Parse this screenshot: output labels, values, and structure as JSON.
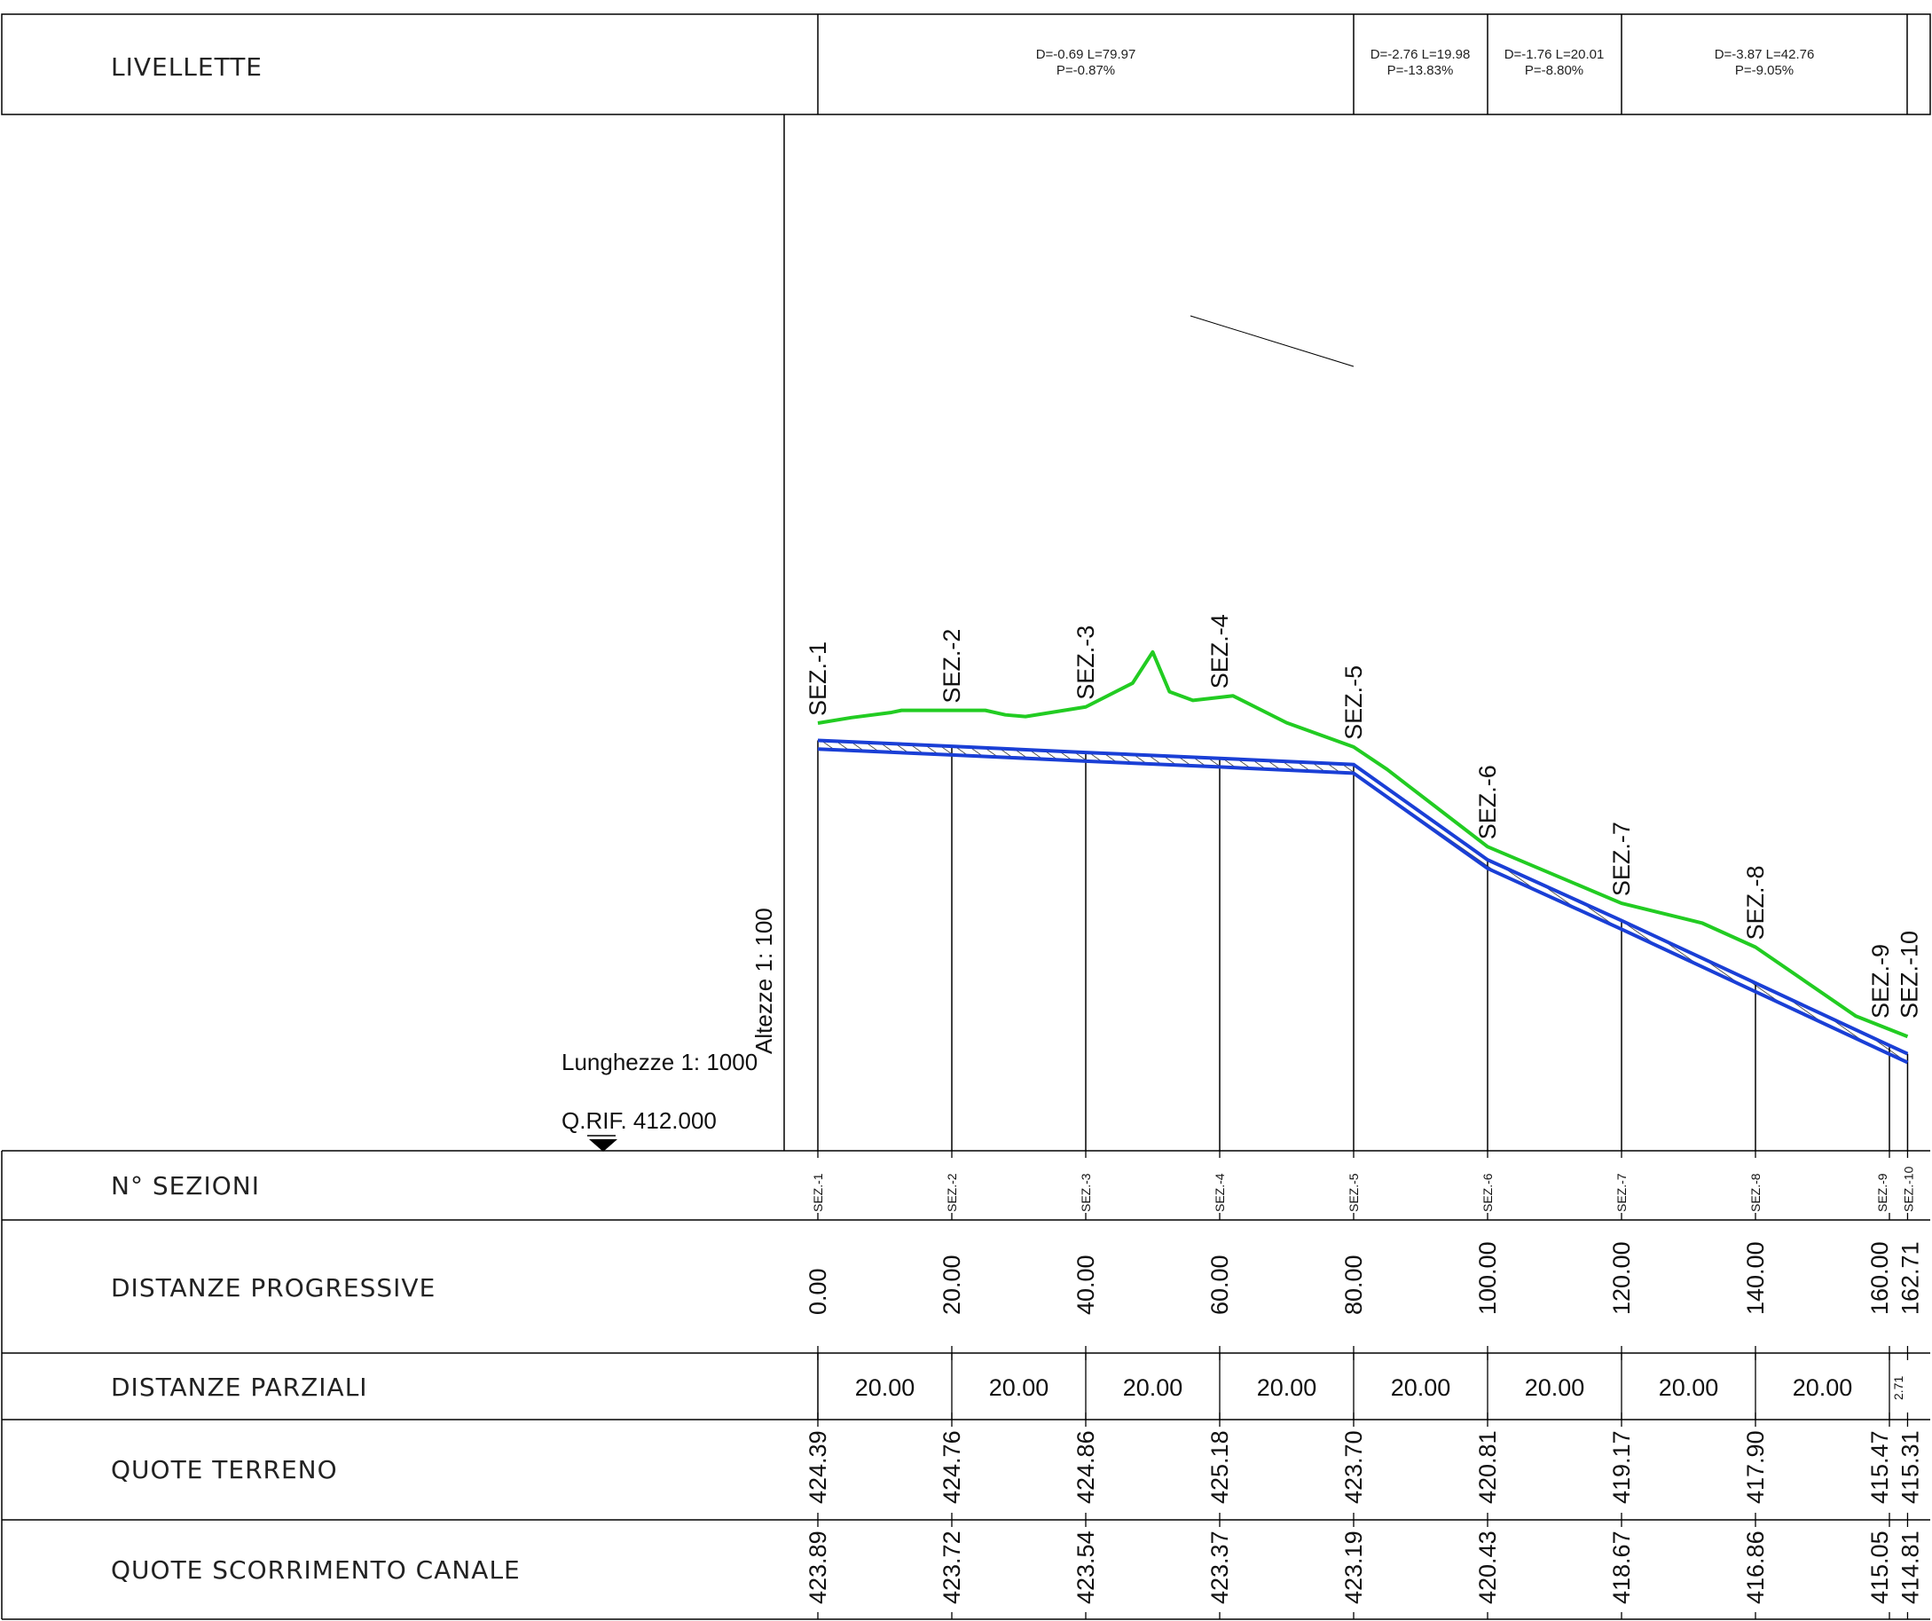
{
  "table": {
    "livellette_label": "LIVELLETTE",
    "sezioni_label": "N° SEZIONI",
    "progressive_label": "DISTANZE  PROGRESSIVE",
    "parziali_label": "DISTANZE  PARZIALI",
    "terreno_label": "QUOTE  TERRENO",
    "canale_label": "QUOTE  SCORRIMENTO  CANALE"
  },
  "livellette": [
    {
      "line1": "D=-0.69 L=79.97",
      "line2": "P=-0.87%"
    },
    {
      "line1": "D=-2.76 L=19.98",
      "line2": "P=-13.83%"
    },
    {
      "line1": "D=-1.76 L=20.01",
      "line2": "P=-8.80%"
    },
    {
      "line1": "D=-3.87 L=42.76",
      "line2": "P=-9.05%"
    }
  ],
  "scale": {
    "heights": "Altezze 1: 100",
    "lengths": "Lunghezze 1: 1000",
    "reference": "Q.RIF. 412.000"
  },
  "chart_data": {
    "type": "line",
    "x": [
      0.0,
      20.0,
      40.0,
      60.0,
      80.0,
      100.0,
      120.0,
      140.0,
      160.0,
      162.71
    ],
    "sections": [
      "SEZ.-1",
      "SEZ.-2",
      "SEZ.-3",
      "SEZ.-4",
      "SEZ.-5",
      "SEZ.-6",
      "SEZ.-7",
      "SEZ.-8",
      "SEZ.-9",
      "SEZ.-10"
    ],
    "progressive_labels": [
      "0.00",
      "20.00",
      "40.00",
      "60.00",
      "80.00",
      "100.00",
      "120.00",
      "140.00",
      "160.00",
      "162.71"
    ],
    "partial_distances": [
      "20.00",
      "20.00",
      "20.00",
      "20.00",
      "20.00",
      "20.00",
      "20.00",
      "20.00",
      "2.71"
    ],
    "terrain_labels": [
      "424.39",
      "424.76",
      "424.86",
      "425.18",
      "423.70",
      "420.81",
      "419.17",
      "417.90",
      "415.47",
      "415.31"
    ],
    "channel_labels": [
      "423.89",
      "423.72",
      "423.54",
      "423.37",
      "423.19",
      "420.43",
      "418.67",
      "416.86",
      "415.05",
      "414.81"
    ],
    "terrain_profile": {
      "x": [
        0.0,
        5.0,
        11.0,
        12.5,
        20.0,
        25.0,
        28.0,
        31.0,
        40.0,
        47.0,
        50.0,
        52.5,
        56.0,
        62.0,
        70.0,
        80.0,
        85.0,
        88.0,
        100.0,
        120.0,
        132.0,
        140.0,
        155.0,
        162.71
      ],
      "y": [
        424.39,
        424.55,
        424.7,
        424.76,
        424.76,
        424.76,
        424.63,
        424.58,
        424.86,
        425.55,
        426.45,
        425.3,
        425.05,
        425.18,
        424.4,
        423.7,
        423.05,
        422.6,
        420.81,
        419.17,
        418.6,
        417.9,
        415.9,
        415.31
      ]
    },
    "channel_top": [
      423.89,
      423.72,
      423.54,
      423.37,
      423.19,
      420.43,
      418.67,
      416.86,
      415.05,
      414.81
    ],
    "channel_thickness": 0.25,
    "colors": {
      "terrain": "#22cc22",
      "channel": "#1a3fd6",
      "lines": "#000000"
    }
  }
}
